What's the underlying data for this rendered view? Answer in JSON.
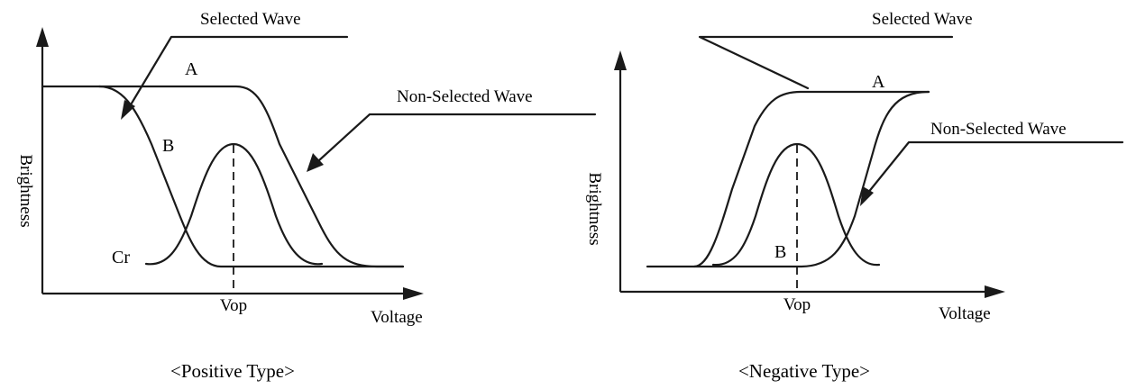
{
  "left_panel": {
    "caption": "<Positive Type>",
    "y_axis_label": "Brightness",
    "x_axis_label": "Voltage",
    "x_tick_label": "Vop",
    "callout_selected": "Selected Wave",
    "callout_non_selected": "Non-Selected Wave",
    "curve_label_a": "A",
    "curve_label_b": "B",
    "curve_label_cr": "Cr"
  },
  "right_panel": {
    "caption": "<Negative Type>",
    "y_axis_label": "Brightness",
    "x_axis_label": "Voltage",
    "x_tick_label": "Vop",
    "callout_selected": "Selected Wave",
    "callout_non_selected": "Non-Selected Wave",
    "curve_label_a": "A",
    "curve_label_b": "B"
  }
}
